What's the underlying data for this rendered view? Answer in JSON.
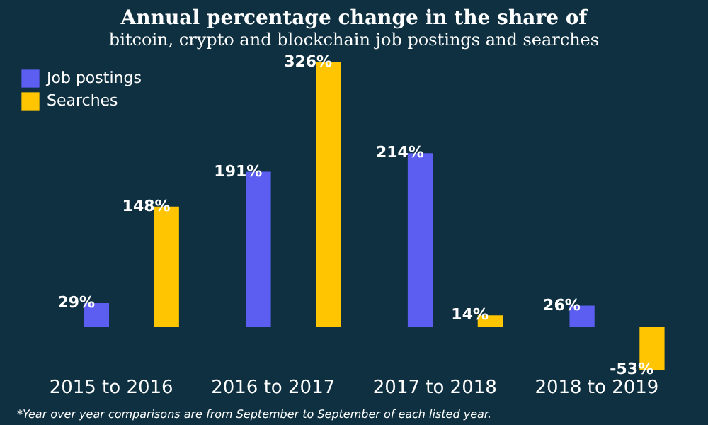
{
  "chart_data": {
    "type": "bar",
    "title": "Annual percentage change in the share of",
    "subtitle": "bitcoin, crypto and blockchain job postings and searches",
    "categories": [
      "2015 to 2016",
      "2016 to 2017",
      "2017 to 2018",
      "2018 to 2019"
    ],
    "series": [
      {
        "name": "Job postings",
        "color": "#5b5ef0",
        "values": [
          29,
          191,
          214,
          26
        ],
        "value_labels": [
          "29%",
          "191%",
          "214%",
          "26%"
        ]
      },
      {
        "name": "Searches",
        "color": "#ffc500",
        "values": [
          148,
          326,
          14,
          -53
        ],
        "value_labels": [
          "148%",
          "326%",
          "14%",
          "-53%"
        ]
      }
    ],
    "legend": "top left",
    "grid": false,
    "annotations": [
      "*Year over year comparisons are from September to September of each listed year."
    ]
  }
}
